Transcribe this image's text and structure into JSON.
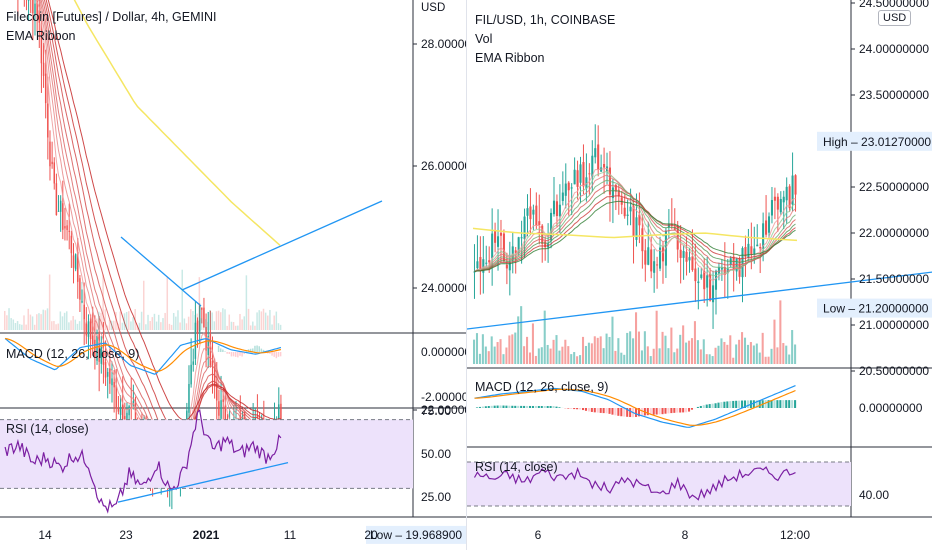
{
  "left_chart": {
    "title": "Filecoin [Futures] / Dollar, 4h, GEMINI",
    "indicator": "EMA Ribbon",
    "currency": "USD",
    "price_ticks": [
      "28.000000",
      "26.000000",
      "24.000000",
      "22.000000"
    ],
    "low_label": "Low",
    "low_value": "19.968900",
    "macd_label": "MACD (12, 26, close, 9)",
    "macd_ticks": [
      "0.000000",
      "-2.000000"
    ],
    "rsi_label": "RSI (14, close)",
    "rsi_ticks": [
      "75.00",
      "50.00",
      "25.00"
    ],
    "time_ticks": [
      "14",
      "23",
      "2021",
      "11",
      "20"
    ]
  },
  "right_chart": {
    "title": "FIL/USD, 1h, COINBASE",
    "volume_label": "Vol",
    "indicator": "EMA Ribbon",
    "currency": "USD",
    "price_ticks": [
      "24.50000000",
      "24.00000000",
      "23.50000000",
      "22.50000000",
      "22.00000000",
      "21.50000000",
      "21.00000000",
      "20.50000000"
    ],
    "high_label": "High",
    "high_value": "23.01270000",
    "low_label": "Low",
    "low_value": "21.20000000",
    "macd_label": "MACD (12, 26, close, 9)",
    "macd_ticks": [
      "0.00000000"
    ],
    "rsi_label": "RSI (14, close)",
    "rsi_ticks": [
      "40.00"
    ],
    "time_ticks": [
      "6",
      "8",
      "12:00"
    ]
  },
  "colors": {
    "up": "#26a69a",
    "down": "#ef5350",
    "ema200": "#f5e663",
    "trendline": "#2196f3",
    "macd": "#2196f3",
    "signal": "#ff8c00",
    "rsi": "#7b1fa2",
    "rsi_band": "#ede2fb"
  },
  "chart_data": [
    {
      "type": "candlestick",
      "title": "Filecoin [Futures] / Dollar, 4h, GEMINI",
      "approx_close_path": [
        29.5,
        29.0,
        28.6,
        25.5,
        24.8,
        23.4,
        22.8,
        22.1,
        21.9,
        21.2,
        20.5,
        21.6,
        23.8,
        22.2,
        21.6,
        21.8,
        21.6,
        22.0
      ],
      "ema_long_approx": [
        29.8,
        28.3,
        27.0,
        26.2,
        25.4,
        24.7
      ],
      "low": 19.9689
    },
    {
      "type": "candlestick",
      "title": "FIL/USD, 1h, COINBASE",
      "approx_close_path": [
        21.6,
        21.9,
        21.7,
        22.2,
        22.0,
        22.4,
        22.6,
        22.8,
        22.3,
        22.1,
        21.6,
        22.0,
        21.8,
        21.4,
        21.5,
        21.7,
        22.0,
        22.3,
        22.5
      ],
      "high": 23.0127,
      "low": 21.2
    }
  ]
}
